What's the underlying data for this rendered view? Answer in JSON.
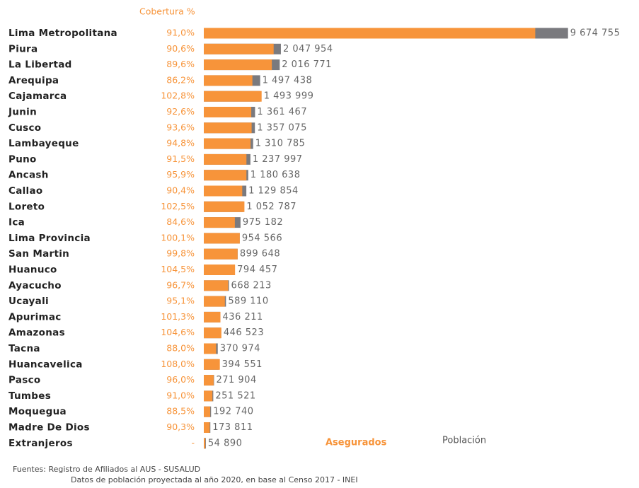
{
  "chart_data": {
    "type": "bar",
    "coverage_title": "Cobertura %",
    "categories": [
      "Lima Metropolitana",
      "Piura",
      "La Libertad",
      "Arequipa",
      "Cajamarca",
      "Junin",
      "Cusco",
      "Lambayeque",
      "Puno",
      "Ancash",
      "Callao",
      "Loreto",
      "Ica",
      "Lima Provincia",
      "San Martin",
      "Huanuco",
      "Ayacucho",
      "Ucayali",
      "Apurimac",
      "Amazonas",
      "Tacna",
      "Huancavelica",
      "Pasco",
      "Tumbes",
      "Moquegua",
      "Madre De Dios",
      "Extranjeros"
    ],
    "series": [
      {
        "name": "Población",
        "color": "#7a7a7e",
        "values": [
          9674755,
          2047954,
          2016771,
          1497438,
          1493999,
          1361467,
          1357075,
          1310785,
          1237997,
          1180638,
          1129854,
          1052787,
          975182,
          954566,
          899648,
          794457,
          668213,
          589110,
          436211,
          446523,
          370974,
          394551,
          271904,
          251521,
          192740,
          173811,
          54890
        ],
        "value_labels": [
          "9 674 755",
          "2 047 954",
          "2 016 771",
          "1 497 438",
          "1 493 999",
          "1 361 467",
          "1 357 075",
          "1 310 785",
          "1 237 997",
          "1 180 638",
          "1 129 854",
          "1 052 787",
          "975 182",
          "954 566",
          "899 648",
          "794 457",
          "668 213",
          "589 110",
          "436 211",
          "446 523",
          "370 974",
          "394 551",
          "271 904",
          "251 521",
          "192 740",
          "173 811",
          "54 890"
        ]
      },
      {
        "name": "Asegurados",
        "color": "#f7943a",
        "values": [
          8804027,
          1855446,
          1807027,
          1290792,
          1535831,
          1260718,
          1270222,
          1242624,
          1132767,
          1132232,
          1021388,
          1079107,
          825004,
          955521,
          897849,
          830208,
          646162,
          560244,
          441882,
          467063,
          326457,
          426115,
          261028,
          228884,
          170575,
          156951,
          40000
        ]
      }
    ],
    "coverage": {
      "values": [
        91.0,
        90.6,
        89.6,
        86.2,
        102.8,
        92.6,
        93.6,
        94.8,
        91.5,
        95.9,
        90.4,
        102.5,
        84.6,
        100.1,
        99.8,
        104.5,
        96.7,
        95.1,
        101.3,
        104.6,
        88.0,
        108.0,
        96.0,
        91.0,
        88.5,
        90.3,
        null
      ],
      "value_labels": [
        "91,0%",
        "90,6%",
        "89,6%",
        "86,2%",
        "102,8%",
        "92,6%",
        "93,6%",
        "94,8%",
        "91,5%",
        "95,9%",
        "90,4%",
        "102,5%",
        "84,6%",
        "100,1%",
        "99,8%",
        "104,5%",
        "96,7%",
        "95,1%",
        "101,3%",
        "104,6%",
        "88,0%",
        "108,0%",
        "96,0%",
        "91,0%",
        "88,5%",
        "90,3%",
        "-"
      ]
    },
    "xlim": [
      0,
      10000000
    ],
    "sources": [
      "Fuentes: Registro de Afiliados al  AUS - SUSALUD",
      "Datos de población proyectada al año 2020, en base al Censo 2017 - INEI"
    ]
  }
}
